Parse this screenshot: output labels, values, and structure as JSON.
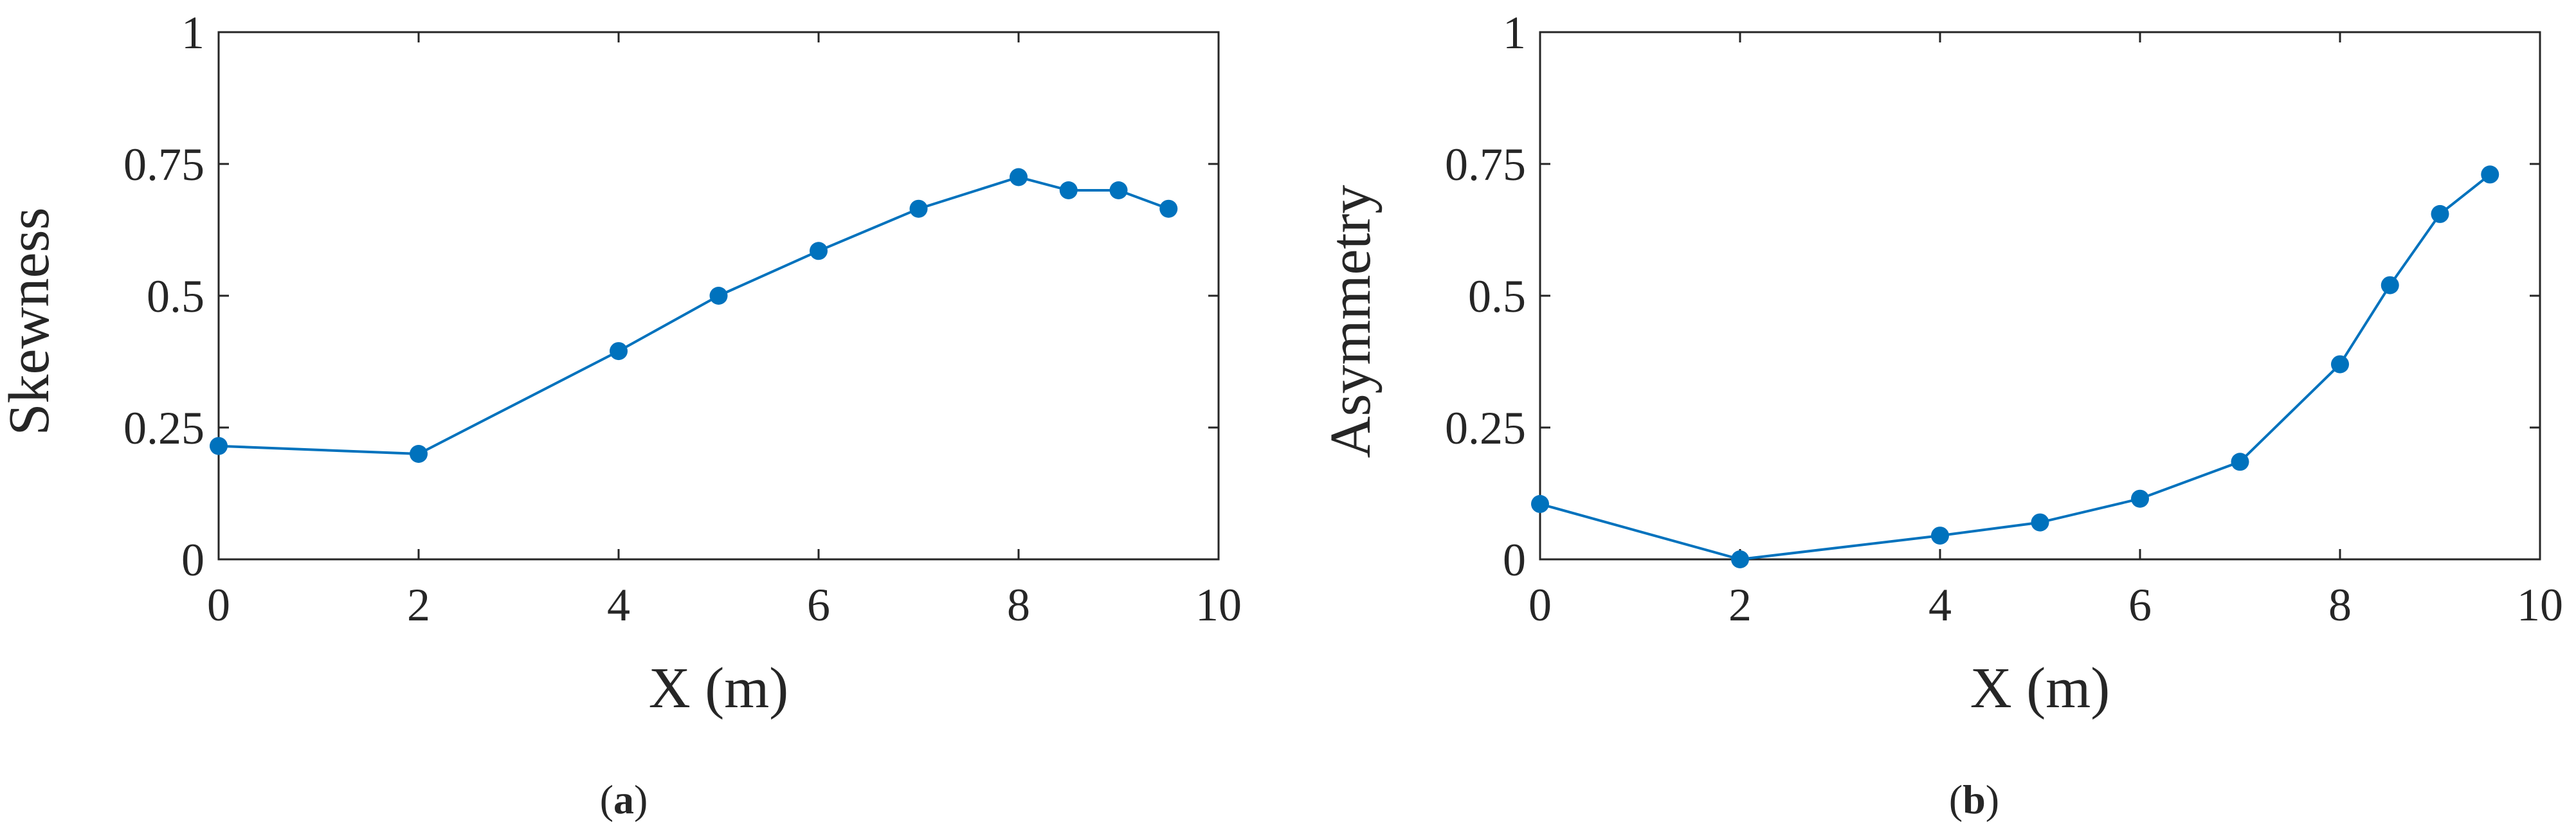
{
  "panels": [
    {
      "caption_open": "(",
      "caption_letter": "a",
      "caption_close": ")",
      "chart_data": {
        "type": "line",
        "title": "",
        "xlabel": "X (m)",
        "ylabel": "Skewness",
        "xlim": [
          0,
          10
        ],
        "ylim": [
          0,
          1
        ],
        "xticks": [
          "0",
          "2",
          "4",
          "6",
          "8",
          "10"
        ],
        "yticks": [
          "0",
          "0.25",
          "0.5",
          "0.75",
          "1"
        ],
        "grid": false,
        "legend": "none",
        "series": [
          {
            "color": "#0072BD",
            "x": [
              0,
              2,
              4,
              5,
              6,
              7,
              8,
              8.5,
              9,
              9.5
            ],
            "y": [
              0.215,
              0.2,
              0.395,
              0.5,
              0.585,
              0.665,
              0.725,
              0.7,
              0.7,
              0.665
            ]
          }
        ]
      }
    },
    {
      "caption_open": "(",
      "caption_letter": "b",
      "caption_close": ")",
      "chart_data": {
        "type": "line",
        "title": "",
        "xlabel": "X (m)",
        "ylabel": "Asymmetry",
        "xlim": [
          0,
          10
        ],
        "ylim": [
          0,
          1
        ],
        "xticks": [
          "0",
          "2",
          "4",
          "6",
          "8",
          "10"
        ],
        "yticks": [
          "0",
          "0.25",
          "0.5",
          "0.75",
          "1"
        ],
        "grid": false,
        "legend": "none",
        "series": [
          {
            "color": "#0072BD",
            "x": [
              0,
              2,
              4,
              5,
              6,
              7,
              8,
              8.5,
              9,
              9.5
            ],
            "y": [
              0.105,
              0.0,
              0.045,
              0.07,
              0.115,
              0.185,
              0.37,
              0.52,
              0.655,
              0.73
            ]
          }
        ]
      }
    }
  ]
}
